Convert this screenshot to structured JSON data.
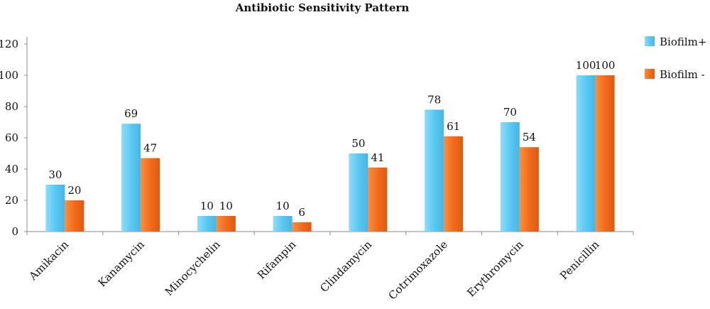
{
  "chart_data": {
    "type": "bar",
    "title": "Antibiotic Sensitivity Pattern",
    "xlabel": "",
    "ylabel": "",
    "ylim": [
      0,
      120
    ],
    "yticks": [
      0,
      20,
      40,
      60,
      80,
      100,
      120
    ],
    "grid": false,
    "legend_position": "right",
    "categories": [
      "Amikacin",
      "Kanamycin",
      "Minocychelin",
      "Rifampin",
      "Clindamycin",
      "Cotrimoxazole",
      "Erythromycin",
      "Penicillin"
    ],
    "series": [
      {
        "name": "Biofilm+",
        "color": "#5bc8f2",
        "values": [
          30,
          69,
          10,
          10,
          50,
          78,
          70,
          100
        ]
      },
      {
        "name": "Biofilm -",
        "color": "#f26b1d",
        "values": [
          20,
          47,
          10,
          6,
          41,
          61,
          54,
          100
        ]
      }
    ]
  }
}
